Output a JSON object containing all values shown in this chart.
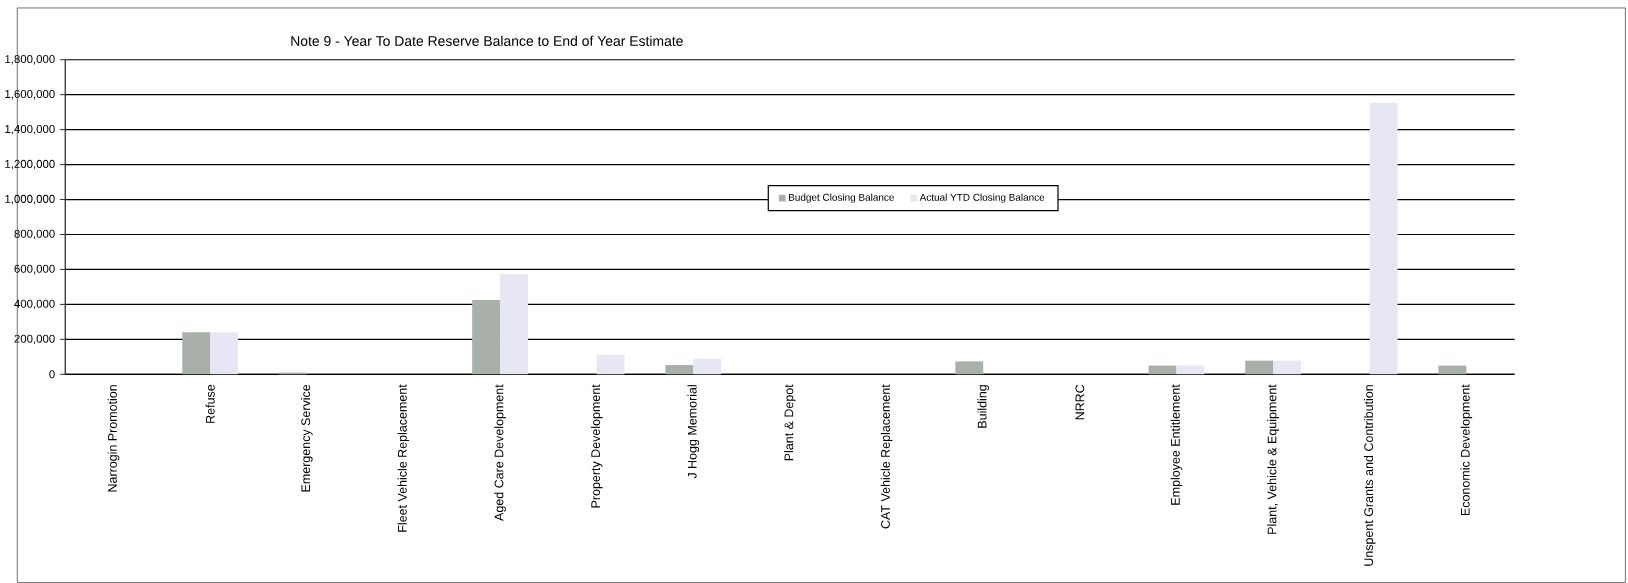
{
  "chart_data": {
    "type": "bar",
    "title": "Note 9 - Year To Date Reserve Balance to End of Year Estimate",
    "categories": [
      "Narrogin Promotion",
      "Refuse",
      "Emergency Service",
      "Fleet Vehicle Replacement",
      "Aged Care Development",
      "Property Development",
      "J Hogg Memorial",
      "Plant & Depot",
      "CAT Vehicle Replacement",
      "Building",
      "NRRC",
      "Employee Entitlement",
      "Plant, Vehicle & Equipment",
      "Unspent Grants and Contribution",
      "Economic Development"
    ],
    "series": [
      {
        "name": "Budget Closing Balance",
        "color": "#a9b0a9",
        "values": [
          0,
          240000,
          10000,
          0,
          425000,
          0,
          53000,
          0,
          0,
          74000,
          0,
          50000,
          78000,
          0,
          50000
        ]
      },
      {
        "name": "Actual YTD Closing Balance",
        "color": "#e6e6f5",
        "values": [
          0,
          240000,
          0,
          0,
          574000,
          112000,
          90000,
          0,
          0,
          0,
          0,
          50000,
          78000,
          1552000,
          0
        ]
      }
    ],
    "ylim": [
      0,
      1800000
    ],
    "yticks": [
      {
        "value": 0,
        "label": "0"
      },
      {
        "value": 200000,
        "label": "200,000"
      },
      {
        "value": 400000,
        "label": "400,000"
      },
      {
        "value": 600000,
        "label": "600,000"
      },
      {
        "value": 800000,
        "label": "800,000"
      },
      {
        "value": 1000000,
        "label": "1,000,000"
      },
      {
        "value": 1200000,
        "label": "1,200,000"
      },
      {
        "value": 1400000,
        "label": "1,400,000"
      },
      {
        "value": 1600000,
        "label": "1,600,000"
      },
      {
        "value": 1800000,
        "label": "1,800,000"
      }
    ],
    "grid": "y",
    "legend": "center"
  }
}
